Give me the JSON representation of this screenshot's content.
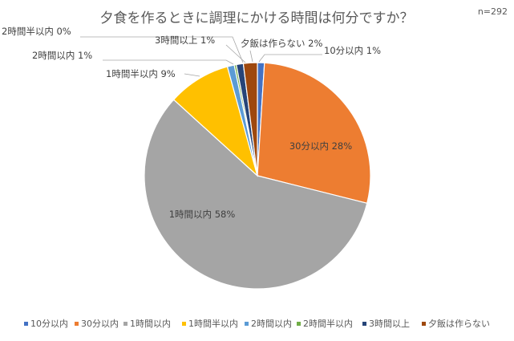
{
  "sample_note": "n=292",
  "chart_data": {
    "type": "pie",
    "title": "夕食を作るときに調理にかける時間は何分ですか？",
    "slices": [
      {
        "label": "10分以内",
        "value": 1,
        "color": "#4472c4",
        "data_label": "10分以内 1%"
      },
      {
        "label": "30分以内",
        "value": 28,
        "color": "#ed7d31",
        "data_label": "30分以内 28%"
      },
      {
        "label": "1時間以内",
        "value": 58,
        "color": "#a5a5a5",
        "data_label": "1時間以内 58%"
      },
      {
        "label": "1時間半以内",
        "value": 9,
        "color": "#ffc000",
        "data_label": "1時間半以内 9%"
      },
      {
        "label": "2時間以内",
        "value": 1,
        "color": "#5b9bd5",
        "data_label": "2時間以内 1%"
      },
      {
        "label": "2時間半以内",
        "value": 0.3,
        "color": "#70ad47",
        "data_label": "2時間半以内 0%"
      },
      {
        "label": "3時間以上",
        "value": 1,
        "color": "#264478",
        "data_label": "3時間以上 1%"
      },
      {
        "label": "夕飯は作らない",
        "value": 2,
        "color": "#9e480e",
        "data_label": "夕飯は作らない 2%"
      }
    ],
    "legend": [
      "10分以内",
      "30分以内",
      "1時間以内",
      "1時間半以内",
      "2時間以内",
      "2時間半以内",
      "3時間以上",
      "夕飯は作らない"
    ],
    "legend_position": "bottom"
  }
}
